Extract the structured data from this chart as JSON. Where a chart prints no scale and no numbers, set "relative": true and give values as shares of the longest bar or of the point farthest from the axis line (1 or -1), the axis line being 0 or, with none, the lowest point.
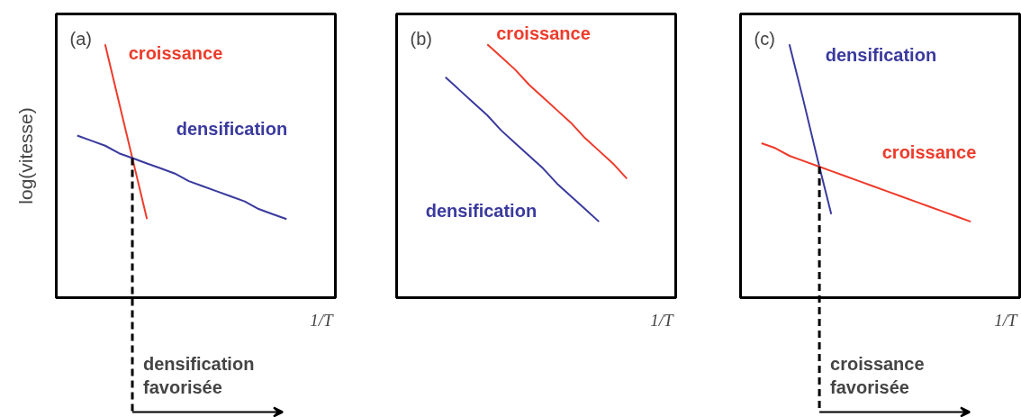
{
  "chart_data": [
    {
      "type": "line",
      "title": "(a)",
      "xlabel": "1/T",
      "ylabel": "log(vitesse)",
      "relative": true,
      "categories": [
        null,
        null,
        null,
        null,
        null,
        null,
        null,
        null,
        null,
        null,
        null,
        null,
        null,
        null,
        null,
        null,
        null,
        null,
        null,
        null
      ],
      "series": [
        {
          "name": "croissance",
          "color": "#ee3b2b",
          "values": [
            null,
            null,
            null,
            1,
            0.77,
            0.54,
            0.31,
            null,
            null,
            null,
            null,
            null,
            null,
            null,
            null,
            null,
            null,
            null,
            null,
            null
          ]
        },
        {
          "name": "densification",
          "color": "#3a3a9e",
          "values": [
            null,
            0.64,
            0.62,
            0.6,
            0.57,
            0.55,
            0.53,
            0.51,
            0.49,
            0.46,
            0.44,
            0.42,
            0.4,
            0.38,
            0.35,
            0.33,
            0.31,
            null,
            null,
            null
          ]
        }
      ],
      "annotations": [
        "densification\nfavorisée"
      ]
    },
    {
      "type": "line",
      "title": "(b)",
      "xlabel": "1/T",
      "relative": true,
      "categories": [
        null,
        null,
        null,
        null,
        null,
        null,
        null,
        null,
        null,
        null,
        null,
        null,
        null,
        null,
        null,
        null,
        null,
        null,
        null,
        null
      ],
      "series": [
        {
          "name": "croissance",
          "color": "#ee3b2b",
          "values": [
            null,
            null,
            null,
            null,
            null,
            null,
            1,
            0.95,
            0.9,
            0.84,
            0.79,
            0.74,
            0.69,
            0.63,
            0.58,
            0.53,
            0.47,
            null,
            null,
            null
          ]
        },
        {
          "name": "densification",
          "color": "#3a3a9e",
          "values": [
            null,
            null,
            null,
            0.87,
            0.82,
            0.77,
            0.72,
            0.66,
            0.61,
            0.56,
            0.51,
            0.45,
            0.4,
            0.35,
            0.3,
            null,
            null,
            null,
            null,
            null
          ]
        }
      ]
    },
    {
      "type": "line",
      "title": "(c)",
      "xlabel": "1/T",
      "relative": true,
      "categories": [
        null,
        null,
        null,
        null,
        null,
        null,
        null,
        null,
        null,
        null,
        null,
        null,
        null,
        null,
        null,
        null,
        null,
        null,
        null,
        null
      ],
      "series": [
        {
          "name": "densification",
          "color": "#3a3a9e",
          "values": [
            null,
            null,
            null,
            1,
            0.78,
            0.55,
            0.33,
            null,
            null,
            null,
            null,
            null,
            null,
            null,
            null,
            null,
            null,
            null,
            null,
            null
          ]
        },
        {
          "name": "croissance",
          "color": "#ee3b2b",
          "values": [
            null,
            0.61,
            0.59,
            0.56,
            0.54,
            0.52,
            0.5,
            0.48,
            0.46,
            0.44,
            0.42,
            0.4,
            0.38,
            0.36,
            0.34,
            0.32,
            0.3,
            null,
            null,
            null
          ]
        }
      ],
      "annotations": [
        "croissance\nfavorisée"
      ]
    }
  ]
}
